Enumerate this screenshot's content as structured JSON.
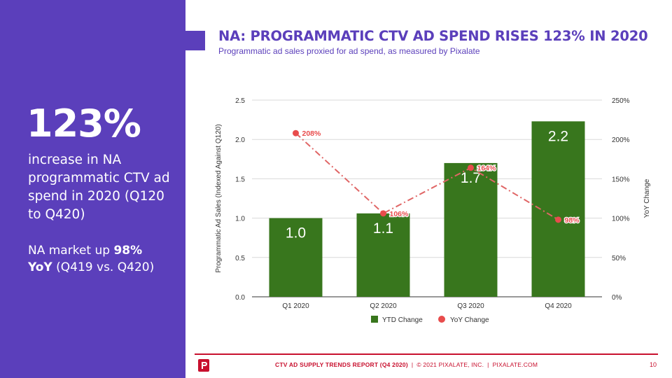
{
  "side_panel": {
    "stat": "123%",
    "description": "increase in NA programmatic CTV ad spend in 2020 (Q120 to Q420)",
    "note_prefix": "NA market up ",
    "note_bold_1": "98%",
    "note_bold_2": "YoY",
    "note_suffix": " (Q419 vs. Q420)"
  },
  "header": {
    "title": "NA: PROGRAMMATIC CTV AD SPEND RISES 123% IN 2020",
    "subtitle": "Programmatic ad sales proxied for ad spend, as measured by Pixalate"
  },
  "chart_data": {
    "type": "bar",
    "categories": [
      "Q1 2020",
      "Q2 2020",
      "Q3 2020",
      "Q4 2020"
    ],
    "series": [
      {
        "name": "YTD Change",
        "type": "bar",
        "axis": "left",
        "values": [
          1.0,
          1.06,
          1.7,
          2.23
        ],
        "data_labels": [
          "1.0",
          "1.1",
          "1.7",
          "2.2"
        ],
        "color": "#38761d"
      },
      {
        "name": "YoY Change",
        "type": "line",
        "axis": "right",
        "values": [
          208,
          106,
          164,
          98
        ],
        "data_labels": [
          "208%",
          "106%",
          "164%",
          "98%"
        ],
        "color": "#e06666"
      }
    ],
    "ylabel": "Programmatic Ad Sales (Indexed Against Q120)",
    "ylabel_right": "YoY Change",
    "ylim": [
      0,
      2.5
    ],
    "yticks": [
      "0.0",
      "0.5",
      "1.0",
      "1.5",
      "2.0",
      "2.5"
    ],
    "ylim_right": [
      0,
      250
    ],
    "yticks_right": [
      "0%",
      "50%",
      "100%",
      "150%",
      "200%",
      "250%"
    ],
    "grid": true,
    "legend": "bottom"
  },
  "footer": {
    "report": "CTV AD SUPPLY TRENDS REPORT (Q4 2020)",
    "separator": "|",
    "copyright": "© 2021 PIXALATE, INC.",
    "website": "PIXALATE.COM",
    "page": "10"
  },
  "colors": {
    "purple": "#5b3fbb",
    "bar_green": "#38761d",
    "line_red": "#e06666",
    "footer_red": "#c8102e"
  },
  "icons": {
    "footer_logo": "pixalate-logo-icon"
  }
}
